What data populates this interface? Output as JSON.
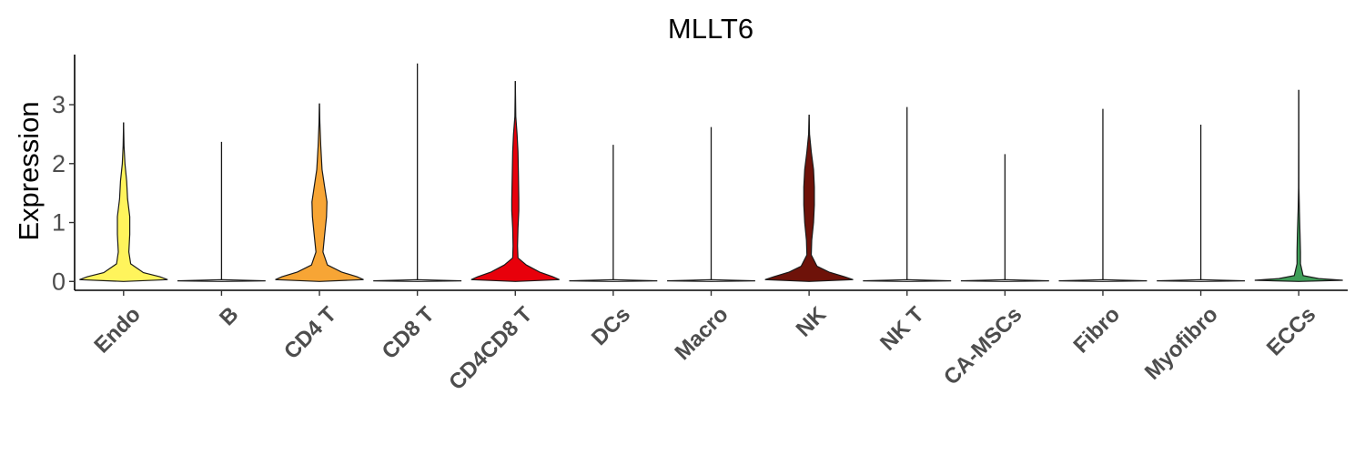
{
  "chart_data": {
    "type": "violin",
    "title": "MLLT6",
    "ylabel": "Expression",
    "xlabel": "",
    "ylim": [
      -0.15,
      3.85
    ],
    "yticks": [
      0,
      1,
      2,
      3
    ],
    "grid": false,
    "legend": "none",
    "groups": [
      {
        "name": "Endo",
        "color": "#FFF45C",
        "max": 2.7,
        "density": [
          [
            0,
            0.0
          ],
          [
            0.03,
            1.0
          ],
          [
            0.08,
            0.82
          ],
          [
            0.15,
            0.45
          ],
          [
            0.3,
            0.16
          ],
          [
            0.5,
            0.12
          ],
          [
            0.8,
            0.14
          ],
          [
            1.1,
            0.14
          ],
          [
            1.4,
            0.09
          ],
          [
            1.7,
            0.07
          ],
          [
            2.0,
            0.03
          ],
          [
            2.3,
            0.01
          ],
          [
            2.7,
            0.0
          ]
        ]
      },
      {
        "name": "B",
        "color": "#FFFFFF",
        "max": 2.37,
        "density": [
          [
            0,
            0.0
          ],
          [
            0.01,
            1.0
          ],
          [
            0.03,
            0.0
          ]
        ]
      },
      {
        "name": "CD4 T",
        "color": "#F7A535",
        "max": 3.02,
        "density": [
          [
            0,
            0.0
          ],
          [
            0.03,
            1.0
          ],
          [
            0.08,
            0.85
          ],
          [
            0.16,
            0.5
          ],
          [
            0.28,
            0.18
          ],
          [
            0.5,
            0.08
          ],
          [
            0.8,
            0.12
          ],
          [
            1.1,
            0.16
          ],
          [
            1.35,
            0.17
          ],
          [
            1.6,
            0.12
          ],
          [
            1.9,
            0.06
          ],
          [
            2.3,
            0.03
          ],
          [
            2.7,
            0.01
          ],
          [
            3.02,
            0.0
          ]
        ]
      },
      {
        "name": "CD8 T",
        "color": "#FFFFFF",
        "max": 3.7,
        "density": [
          [
            0,
            0.0
          ],
          [
            0.01,
            1.0
          ],
          [
            0.03,
            0.0
          ]
        ]
      },
      {
        "name": "CD4CD8 T",
        "color": "#E8000B",
        "max": 3.4,
        "density": [
          [
            0,
            0.0
          ],
          [
            0.03,
            1.0
          ],
          [
            0.08,
            0.85
          ],
          [
            0.16,
            0.55
          ],
          [
            0.28,
            0.25
          ],
          [
            0.4,
            0.06
          ],
          [
            0.6,
            0.05
          ],
          [
            0.9,
            0.06
          ],
          [
            1.2,
            0.08
          ],
          [
            1.4,
            0.08
          ],
          [
            1.8,
            0.07
          ],
          [
            2.2,
            0.06
          ],
          [
            2.5,
            0.04
          ],
          [
            2.8,
            0.01
          ],
          [
            3.4,
            0.0
          ]
        ]
      },
      {
        "name": "DCs",
        "color": "#FFFFFF",
        "max": 2.32,
        "density": [
          [
            0,
            0.0
          ],
          [
            0.01,
            1.0
          ],
          [
            0.03,
            0.0
          ]
        ]
      },
      {
        "name": "Macro",
        "color": "#FFFFFF",
        "max": 2.62,
        "density": [
          [
            0,
            0.0
          ],
          [
            0.01,
            1.0
          ],
          [
            0.03,
            0.0
          ]
        ]
      },
      {
        "name": "NK",
        "color": "#6E1209",
        "max": 2.83,
        "density": [
          [
            0,
            0.0
          ],
          [
            0.03,
            1.0
          ],
          [
            0.08,
            0.8
          ],
          [
            0.16,
            0.45
          ],
          [
            0.26,
            0.18
          ],
          [
            0.45,
            0.05
          ],
          [
            0.7,
            0.06
          ],
          [
            1.0,
            0.1
          ],
          [
            1.3,
            0.12
          ],
          [
            1.6,
            0.12
          ],
          [
            1.9,
            0.1
          ],
          [
            2.2,
            0.05
          ],
          [
            2.5,
            0.01
          ],
          [
            2.83,
            0.0
          ]
        ]
      },
      {
        "name": "NK T",
        "color": "#FFFFFF",
        "max": 2.96,
        "density": [
          [
            0,
            0.0
          ],
          [
            0.01,
            1.0
          ],
          [
            0.03,
            0.0
          ]
        ]
      },
      {
        "name": "CA-MSCs",
        "color": "#FFFFFF",
        "max": 2.16,
        "density": [
          [
            0,
            0.0
          ],
          [
            0.01,
            1.0
          ],
          [
            0.03,
            0.0
          ]
        ]
      },
      {
        "name": "Fibro",
        "color": "#FFFFFF",
        "max": 2.93,
        "density": [
          [
            0,
            0.0
          ],
          [
            0.01,
            1.0
          ],
          [
            0.03,
            0.0
          ]
        ]
      },
      {
        "name": "Myofibro",
        "color": "#FFFFFF",
        "max": 2.66,
        "density": [
          [
            0,
            0.0
          ],
          [
            0.01,
            1.0
          ],
          [
            0.03,
            0.0
          ]
        ]
      },
      {
        "name": "ECCs",
        "color": "#3F9E58",
        "max": 3.25,
        "density": [
          [
            0,
            0.0
          ],
          [
            0.02,
            1.0
          ],
          [
            0.05,
            0.45
          ],
          [
            0.1,
            0.1
          ],
          [
            0.3,
            0.04
          ],
          [
            0.5,
            0.04
          ],
          [
            0.8,
            0.03
          ],
          [
            1.2,
            0.015
          ],
          [
            1.6,
            0.005
          ],
          [
            3.25,
            0.0
          ]
        ]
      }
    ]
  }
}
